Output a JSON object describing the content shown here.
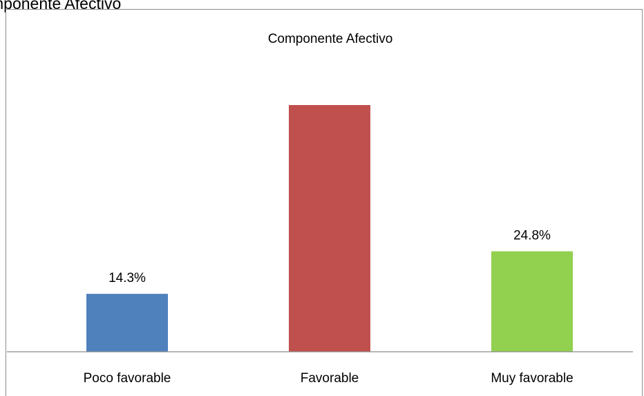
{
  "page": {
    "caption": "mponente Afectivo"
  },
  "chart_data": {
    "type": "bar",
    "title": "Componente Afectivo",
    "categories": [
      "Poco favorable",
      "Favorable",
      "Muy favorable"
    ],
    "values": [
      14.3,
      60.9,
      24.8
    ],
    "data_labels": [
      "14.3%",
      "",
      "24.8%"
    ],
    "colors": [
      "#4f81bd",
      "#c0504d",
      "#92d050"
    ],
    "xlabel": "",
    "ylabel": "",
    "ylim": [
      0,
      70
    ],
    "grid": false,
    "legend": "none"
  }
}
